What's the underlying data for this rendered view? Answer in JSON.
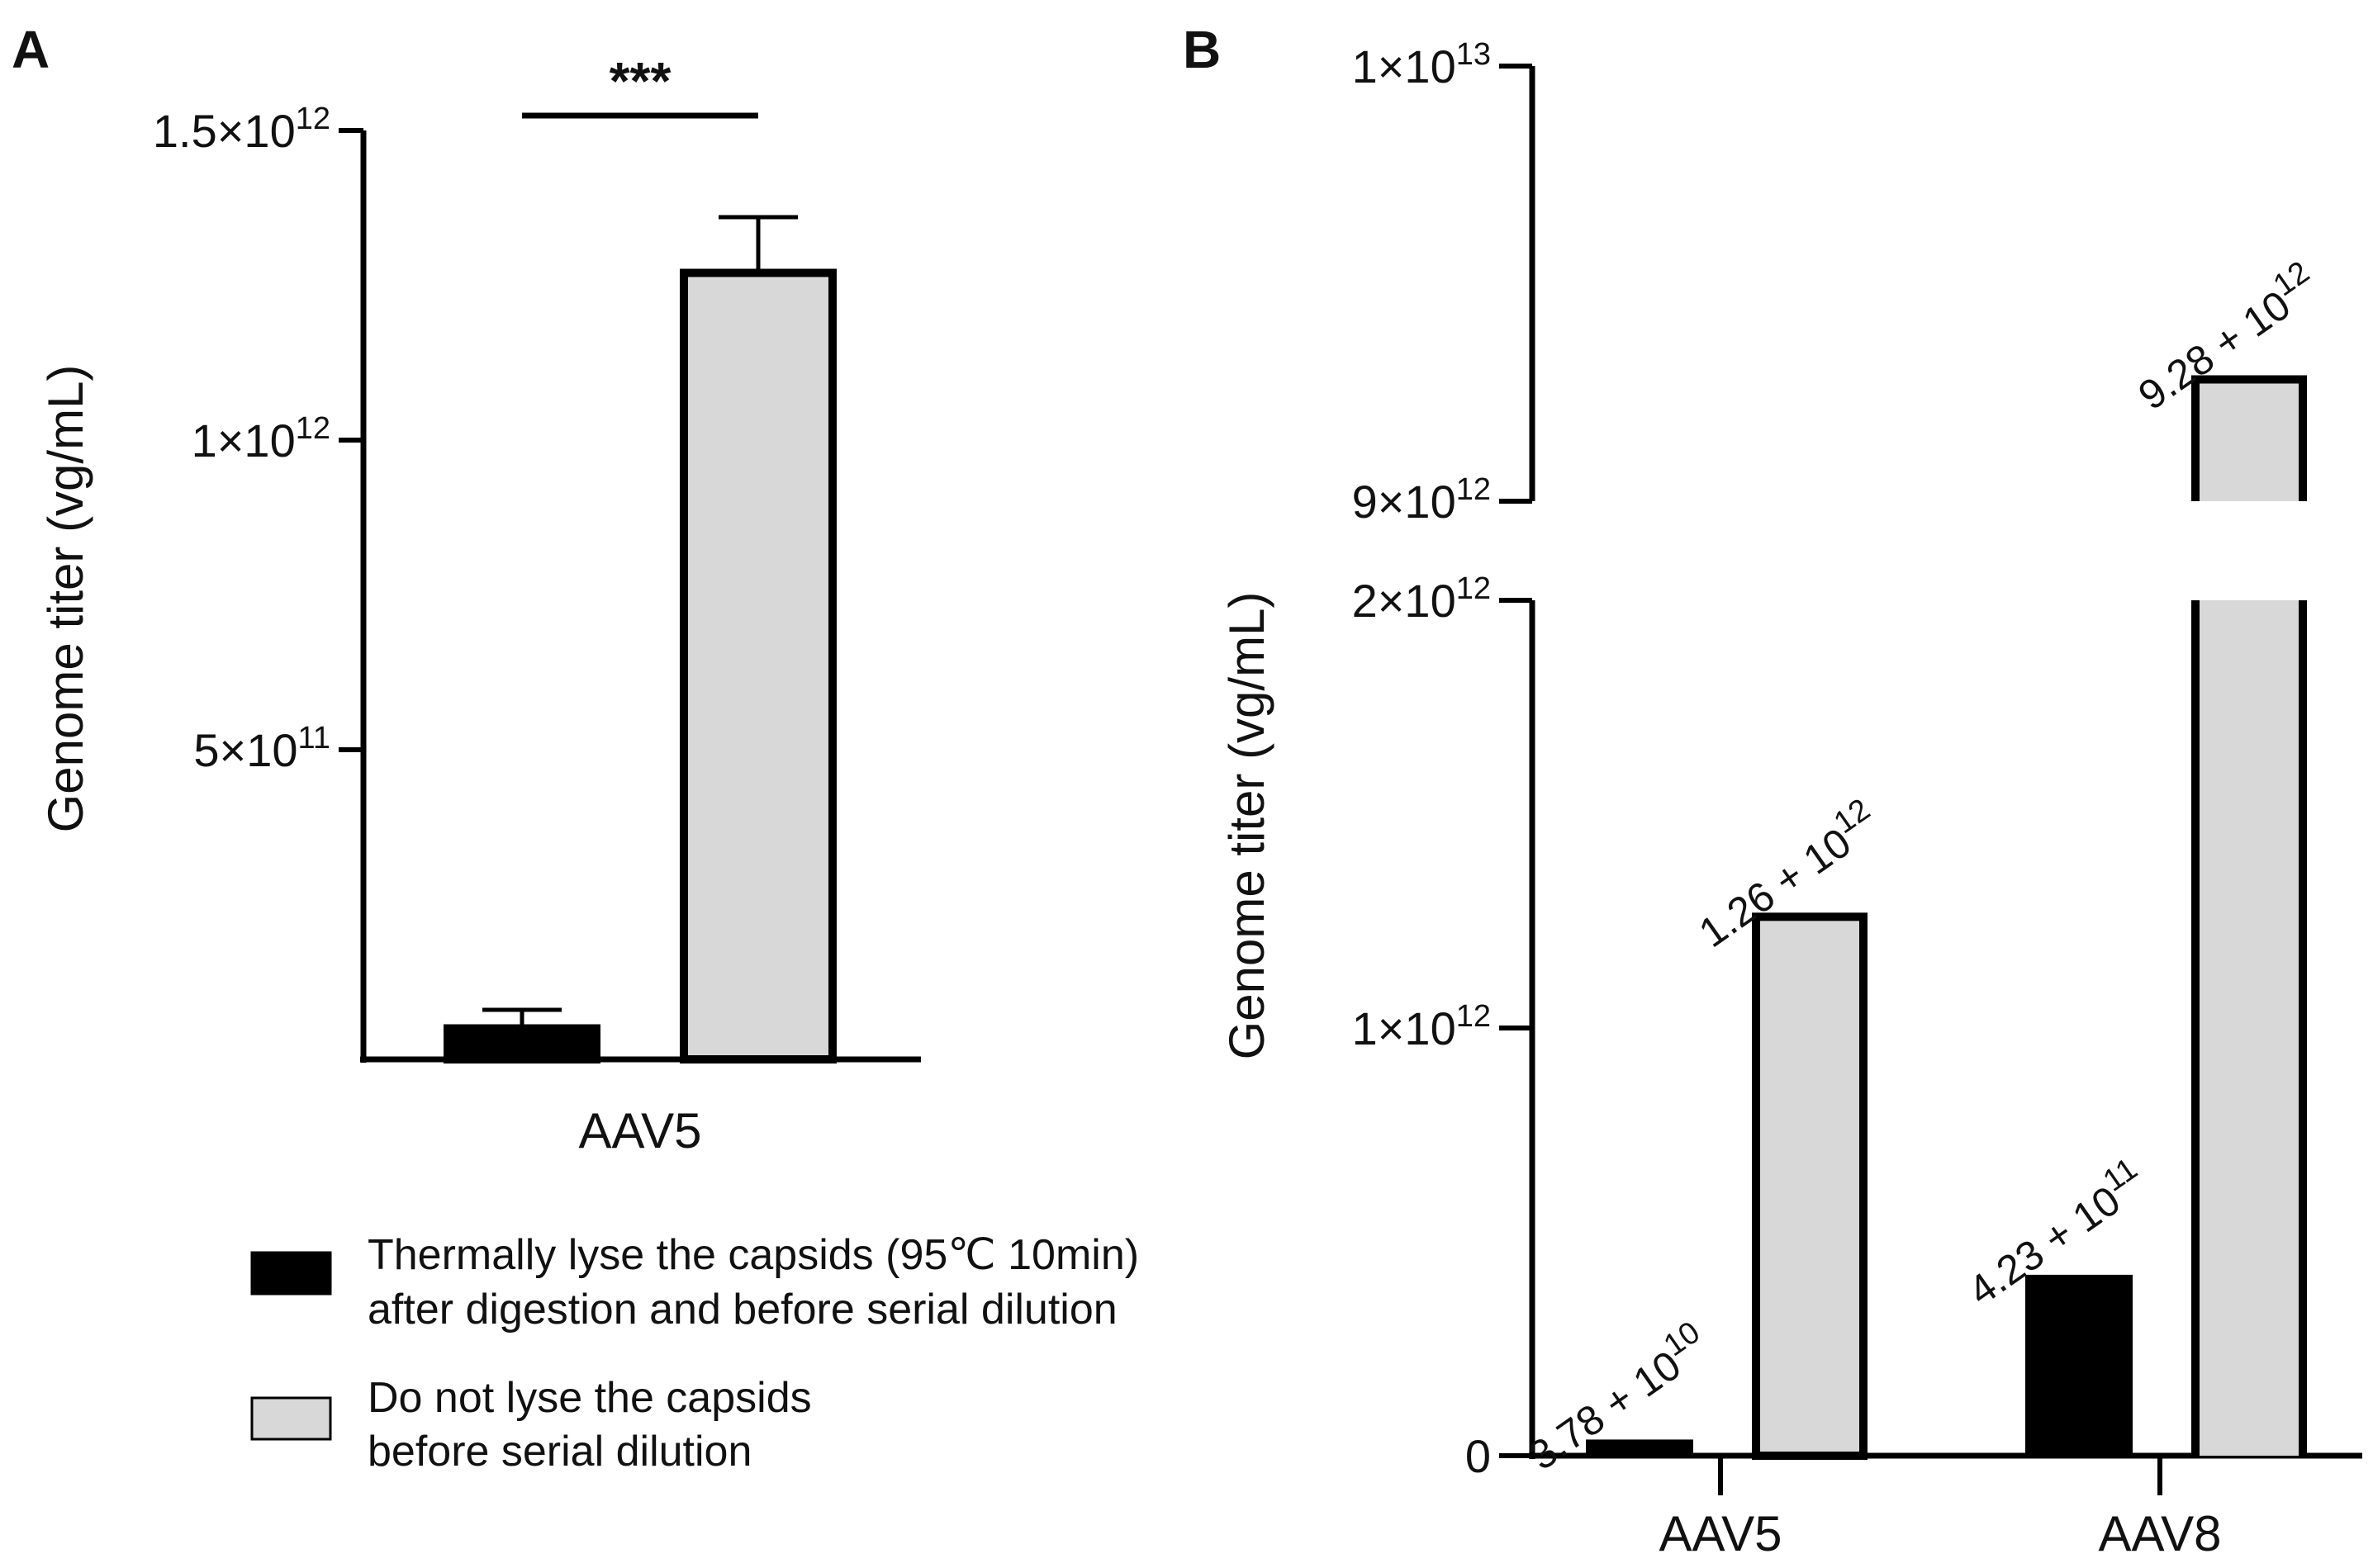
{
  "colors": {
    "axis": "#000000",
    "thermal_fill": "#000000",
    "no_lyse_fill": "#d8d8d8",
    "bar_stroke": "#000000"
  },
  "legend": {
    "items": [
      {
        "series": "thermal",
        "line1": "Thermally lyse the capsids (95℃ 10min)",
        "line2": "after digestion and before serial dilution"
      },
      {
        "series": "no_lyse",
        "line1": "Do not lyse the capsids",
        "line2": "before serial dilution"
      }
    ]
  },
  "chart_data": [
    {
      "panel": "A",
      "type": "bar",
      "categories": [
        "AAV5"
      ],
      "series": [
        {
          "name": "thermal",
          "values": [
            50000000000.0
          ],
          "error": [
            30000000000.0
          ]
        },
        {
          "name": "no_lyse",
          "values": [
            1270000000000.0
          ],
          "error": [
            90000000000.0
          ]
        }
      ],
      "ylabel": "Genome titer (vg/mL)",
      "ylim": [
        0,
        1500000000000.0
      ],
      "yticks": [
        {
          "value": 500000000000.0,
          "base": "5×10",
          "exp": "11"
        },
        {
          "value": 1000000000000.0,
          "base": "1×10",
          "exp": "12"
        },
        {
          "value": 1500000000000.0,
          "base": "1.5×10",
          "exp": "12"
        }
      ],
      "significance": "***"
    },
    {
      "panel": "B",
      "type": "bar",
      "categories": [
        "AAV5",
        "AAV8"
      ],
      "series": [
        {
          "name": "thermal",
          "values": [
            37800000000.0,
            423000000000.0
          ],
          "labels": [
            {
              "base": "3.78 + 10",
              "exp": "10"
            },
            {
              "base": "4.23 + 10",
              "exp": "11"
            }
          ]
        },
        {
          "name": "no_lyse",
          "values": [
            1260000000000.0,
            9280000000000.0
          ],
          "labels": [
            {
              "base": "1.26 + 10",
              "exp": "12"
            },
            {
              "base": "9.28 + 10",
              "exp": "12"
            }
          ]
        }
      ],
      "ylabel": "Genome titer (vg/mL)",
      "axis_break": [
        2000000000000.0,
        9000000000000.0
      ],
      "ylim_lower": [
        0,
        2000000000000.0
      ],
      "ylim_upper": [
        9000000000000.0,
        10000000000000.0
      ],
      "yticks": [
        {
          "value": 0,
          "base": "0",
          "exp": ""
        },
        {
          "value": 1000000000000.0,
          "base": "1×10",
          "exp": "12"
        },
        {
          "value": 2000000000000.0,
          "base": "2×10",
          "exp": "12"
        },
        {
          "value": 9000000000000.0,
          "base": "9×10",
          "exp": "12"
        },
        {
          "value": 10000000000000.0,
          "base": "1×10",
          "exp": "13"
        }
      ]
    }
  ]
}
